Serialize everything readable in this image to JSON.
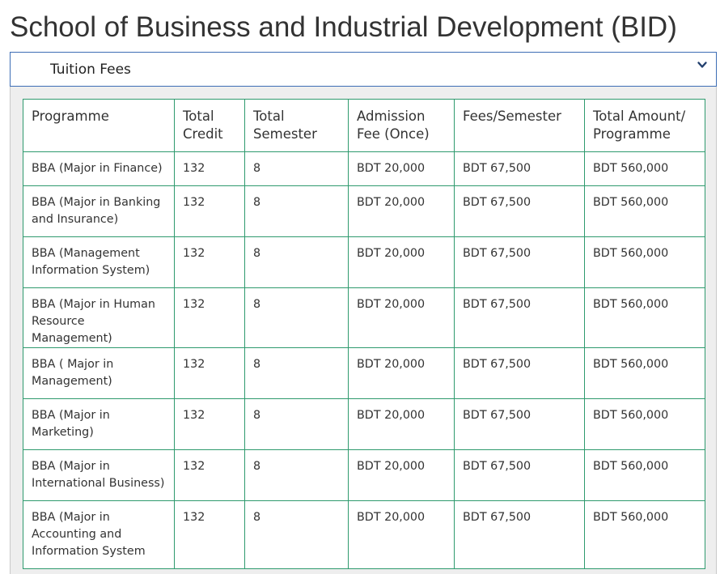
{
  "page": {
    "title": "School of Business and Industrial Development (BID)"
  },
  "accordion": {
    "header_label": "Tuition Fees",
    "toggle_icon": "chevron-down-icon",
    "accent_color": "#3d6db5"
  },
  "table": {
    "border_color": "#2f9a6e",
    "headers": [
      "Programme",
      "Total Credit",
      "Total Semester",
      "Admission Fee (Once)",
      "Fees/Semester",
      "Total Amount/ Programme"
    ],
    "rows": [
      [
        "BBA (Major in Finance)",
        "132",
        "8",
        "BDT 20,000",
        "BDT 67,500",
        "BDT 560,000"
      ],
      [
        "BBA (Major in Banking and Insurance)",
        "132",
        "8",
        "BDT 20,000",
        "BDT 67,500",
        "BDT 560,000"
      ],
      [
        "BBA (Management Information System)",
        "132",
        "8",
        "BDT 20,000",
        "BDT 67,500",
        "BDT 560,000"
      ],
      [
        "BBA (Major in Human Resource Management)",
        "132",
        "8",
        "BDT 20,000",
        "BDT 67,500",
        "BDT 560,000"
      ],
      [
        "BBA ( Major in Management)",
        "132",
        "8",
        "BDT 20,000",
        "BDT 67,500",
        "BDT 560,000"
      ],
      [
        "BBA (Major in Marketing)",
        "132",
        "8",
        "BDT 20,000",
        "BDT 67,500",
        "BDT 560,000"
      ],
      [
        "BBA (Major in International Business)",
        "132",
        "8",
        "BDT 20,000",
        "BDT 67,500",
        "BDT 560,000"
      ],
      [
        "BBA (Major in Accounting and Information System",
        "132",
        "8",
        "BDT 20,000",
        "BDT 67,500",
        "BDT 560,000"
      ]
    ]
  }
}
